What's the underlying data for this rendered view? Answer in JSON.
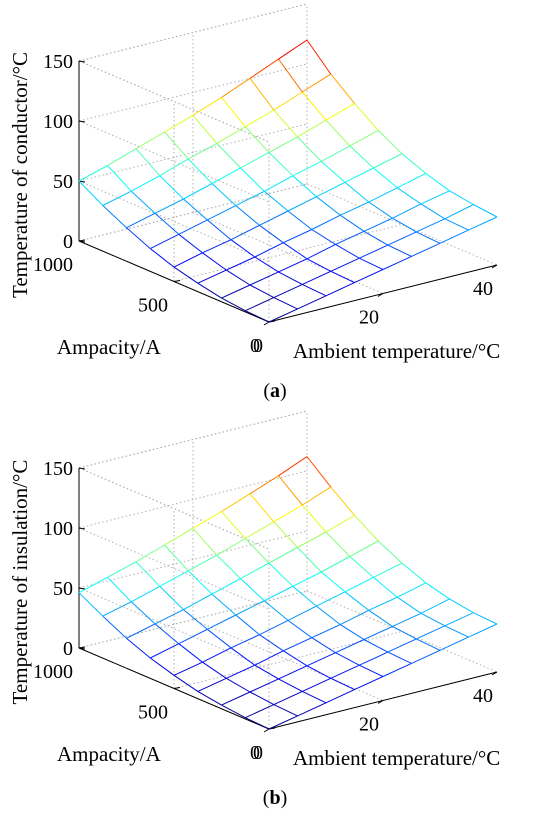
{
  "chart_data": [
    {
      "type": "surface",
      "caption_label": "a",
      "zlabel": "Temperature of conductor/°C",
      "xlabel": "Ambient temperature/°C",
      "ylabel": "Ampacity/A",
      "zticks": [
        "0",
        "50",
        "100",
        "150"
      ],
      "xticks": [
        "0",
        "20",
        "40"
      ],
      "yticks": [
        "0",
        "500",
        "1000"
      ],
      "xlim": [
        0,
        40
      ],
      "ylim": [
        0,
        1000
      ],
      "zlim": [
        0,
        150
      ],
      "x": [
        0,
        5,
        10,
        15,
        20,
        25,
        30,
        35,
        40
      ],
      "y": [
        0,
        125,
        250,
        375,
        500,
        625,
        750,
        875,
        1000
      ],
      "z": [
        [
          0,
          5,
          10,
          15,
          20,
          25,
          30,
          35,
          40
        ],
        [
          1,
          6,
          11,
          16,
          21,
          26,
          31,
          36,
          42
        ],
        [
          3,
          8,
          13,
          18,
          24,
          29,
          34,
          40,
          45
        ],
        [
          7,
          12,
          17,
          23,
          28,
          34,
          39,
          45,
          51
        ],
        [
          12,
          18,
          23,
          29,
          35,
          41,
          47,
          53,
          59
        ],
        [
          19,
          25,
          31,
          37,
          43,
          50,
          56,
          63,
          70
        ],
        [
          28,
          34,
          40,
          47,
          54,
          61,
          68,
          76,
          84
        ],
        [
          38,
          44,
          51,
          59,
          66,
          74,
          82,
          91,
          100
        ],
        [
          50,
          57,
          65,
          73,
          81,
          90,
          100,
          110,
          120
        ]
      ]
    },
    {
      "type": "surface",
      "caption_label": "b",
      "zlabel": "Temperature of insulation/°C",
      "xlabel": "Ambient temperature/°C",
      "ylabel": "Ampacity/A",
      "zticks": [
        "0",
        "50",
        "100",
        "150"
      ],
      "xticks": [
        "0",
        "20",
        "40"
      ],
      "yticks": [
        "0",
        "500",
        "1000"
      ],
      "xlim": [
        0,
        40
      ],
      "ylim": [
        0,
        1000
      ],
      "zlim": [
        0,
        150
      ],
      "x": [
        0,
        5,
        10,
        15,
        20,
        25,
        30,
        35,
        40
      ],
      "y": [
        0,
        125,
        250,
        375,
        500,
        625,
        750,
        875,
        1000
      ],
      "z": [
        [
          0,
          5,
          10,
          15,
          20,
          25,
          30,
          35,
          40
        ],
        [
          1,
          6,
          11,
          16,
          21,
          26,
          31,
          36,
          41
        ],
        [
          3,
          8,
          13,
          18,
          23,
          28,
          33,
          38,
          44
        ],
        [
          6,
          11,
          16,
          22,
          27,
          32,
          38,
          43,
          49
        ],
        [
          11,
          16,
          22,
          27,
          33,
          39,
          45,
          51,
          57
        ],
        [
          17,
          23,
          29,
          35,
          41,
          47,
          53,
          60,
          67
        ],
        [
          25,
          31,
          37,
          44,
          51,
          58,
          65,
          72,
          80
        ],
        [
          35,
          41,
          48,
          55,
          62,
          70,
          78,
          86,
          95
        ],
        [
          46,
          53,
          60,
          68,
          76,
          84,
          93,
          102,
          112
        ]
      ]
    }
  ]
}
